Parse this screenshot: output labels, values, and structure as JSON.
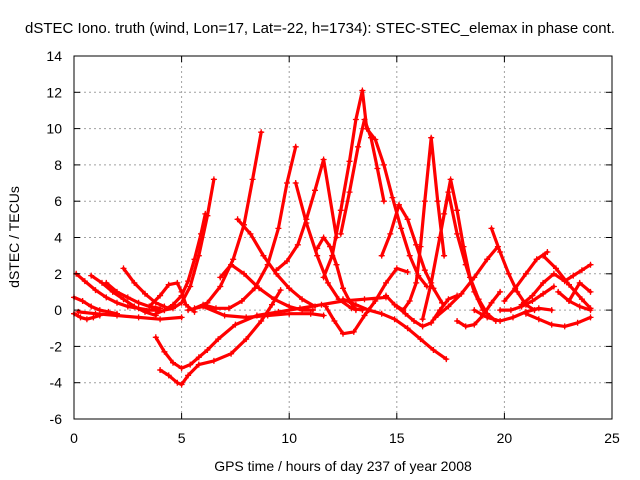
{
  "chart_data": {
    "type": "scatter",
    "title": "dSTEC Iono. truth (wind, Lon=17, Lat=-22, h=1734): STEC-STEC_elemax in phase cont.",
    "xlabel": "GPS time / hours of day 237 of year 2008",
    "ylabel": "dSTEC  / TECUs",
    "xlim": [
      0,
      25
    ],
    "ylim": [
      -6,
      14
    ],
    "xticks": [
      0,
      5,
      10,
      15,
      20,
      25
    ],
    "yticks": [
      -6,
      -4,
      -2,
      0,
      2,
      4,
      6,
      8,
      10,
      12,
      14
    ],
    "xtick_labels": [
      "0",
      "5",
      "10",
      "15",
      "20",
      "25"
    ],
    "ytick_labels": [
      "-6",
      "-4",
      "-2",
      "0",
      "2",
      "4",
      "6",
      "8",
      "10",
      "12",
      "14"
    ],
    "grid": true,
    "marker": "plus",
    "color": "#ff0000",
    "series": [
      {
        "x": [
          0.0,
          0.4,
          0.8,
          1.2,
          1.6,
          2.0
        ],
        "y": [
          0.7,
          0.5,
          0.2,
          0.0,
          -0.1,
          -0.2
        ]
      },
      {
        "x": [
          0.0,
          0.3,
          0.6,
          0.9,
          1.2
        ],
        "y": [
          -0.2,
          -0.4,
          -0.5,
          -0.4,
          -0.3
        ]
      },
      {
        "x": [
          0.1,
          0.5,
          1.0,
          1.5,
          2.0,
          2.5,
          3.0,
          3.5,
          4.0
        ],
        "y": [
          2.0,
          1.6,
          1.1,
          0.7,
          0.4,
          0.2,
          0.1,
          0.0,
          0.0
        ]
      },
      {
        "x": [
          0.8,
          1.3,
          1.8,
          2.3,
          2.8,
          3.3,
          3.8
        ],
        "y": [
          1.9,
          1.5,
          1.0,
          0.6,
          0.2,
          -0.1,
          -0.3
        ]
      },
      {
        "x": [
          1.5,
          2.0,
          2.5,
          3.0,
          3.5,
          4.0
        ],
        "y": [
          1.5,
          1.0,
          0.7,
          0.4,
          0.2,
          0.1
        ]
      },
      {
        "x": [
          0.2,
          1.0,
          2.0,
          3.0,
          4.0,
          5.0
        ],
        "y": [
          -0.1,
          -0.2,
          -0.3,
          -0.4,
          -0.5,
          -0.4
        ]
      },
      {
        "x": [
          2.3,
          2.8,
          3.3,
          3.8,
          4.2
        ],
        "y": [
          2.3,
          1.5,
          0.9,
          0.4,
          0.2
        ]
      },
      {
        "x": [
          3.5,
          4.0,
          4.4,
          4.8,
          5.0,
          5.2,
          5.6
        ],
        "y": [
          0.2,
          0.8,
          1.4,
          1.5,
          1.0,
          0.3,
          -0.1
        ]
      },
      {
        "x": [
          3.8,
          4.2,
          4.6,
          5.0,
          5.3,
          5.6,
          5.9,
          6.1
        ],
        "y": [
          -0.2,
          0.0,
          0.3,
          0.8,
          1.6,
          2.8,
          4.2,
          5.3
        ]
      },
      {
        "x": [
          4.2,
          4.6,
          5.0,
          5.4,
          5.8,
          6.2,
          6.5
        ],
        "y": [
          0.0,
          0.1,
          0.4,
          1.3,
          3.0,
          5.2,
          7.2
        ]
      },
      {
        "x": [
          3.8,
          4.2,
          4.6,
          5.0,
          5.4,
          5.8,
          6.2,
          6.7,
          7.5,
          8.5,
          9.5,
          10.5,
          11.5,
          12.5,
          13.5,
          14.5
        ],
        "y": [
          -1.5,
          -2.3,
          -2.9,
          -3.2,
          -3.0,
          -2.6,
          -2.2,
          -1.6,
          -0.8,
          -0.3,
          -0.1,
          0.1,
          0.3,
          0.5,
          0.6,
          0.7
        ]
      },
      {
        "x": [
          4.0,
          4.4,
          4.8,
          5.0,
          5.3,
          5.8,
          6.5,
          7.3,
          8.0,
          8.7,
          9.2,
          9.6
        ],
        "y": [
          -3.3,
          -3.6,
          -4.0,
          -4.1,
          -3.6,
          -3.0,
          -2.8,
          -2.4,
          -1.6,
          -0.6,
          0.3,
          1.1
        ]
      },
      {
        "x": [
          5.6,
          6.2,
          6.8,
          7.4,
          7.9,
          8.3,
          8.7
        ],
        "y": [
          0.1,
          0.4,
          1.3,
          2.8,
          4.7,
          7.2,
          9.8
        ]
      },
      {
        "x": [
          6.0,
          6.6,
          7.2,
          7.8,
          8.4,
          9.0,
          9.5,
          9.9,
          10.3
        ],
        "y": [
          0.3,
          0.1,
          0.1,
          0.5,
          1.2,
          2.5,
          4.5,
          7.0,
          9.0
        ]
      },
      {
        "x": [
          5.3,
          6.0,
          7.0,
          8.0,
          9.0,
          10.0,
          11.0,
          11.6
        ],
        "y": [
          0.0,
          0.2,
          -0.3,
          -0.4,
          -0.3,
          -0.2,
          -0.2,
          -0.3
        ]
      },
      {
        "x": [
          6.8,
          7.3,
          7.9,
          8.6,
          9.3,
          10.0,
          10.6,
          11.1
        ],
        "y": [
          1.8,
          2.5,
          2.0,
          1.2,
          0.6,
          0.2,
          0.0,
          0.0
        ]
      },
      {
        "x": [
          7.6,
          8.2,
          8.8,
          9.4,
          10.0,
          10.6,
          11.2
        ],
        "y": [
          5.0,
          4.2,
          3.0,
          2.0,
          1.2,
          0.6,
          0.2
        ]
      },
      {
        "x": [
          9.4,
          9.9,
          10.4,
          10.8,
          11.2,
          11.6,
          12.2
        ],
        "y": [
          2.2,
          2.7,
          3.6,
          5.0,
          6.6,
          8.3,
          4.0
        ]
      },
      {
        "x": [
          10.3,
          10.8,
          11.3,
          11.8,
          12.3,
          12.9,
          13.4
        ],
        "y": [
          7.0,
          4.8,
          3.0,
          1.5,
          0.6,
          0.1,
          0.0
        ]
      },
      {
        "x": [
          11.3,
          11.6,
          11.9,
          12.2,
          12.5,
          12.8,
          13.1
        ],
        "y": [
          3.4,
          4.0,
          3.5,
          2.5,
          1.2,
          0.5,
          0.0
        ]
      },
      {
        "x": [
          11.6,
          12.0,
          12.4,
          12.8,
          13.1,
          13.4,
          13.6
        ],
        "y": [
          1.8,
          3.0,
          5.5,
          8.2,
          10.5,
          12.1,
          10.0
        ]
      },
      {
        "x": [
          12.4,
          12.8,
          13.2,
          13.5,
          13.8,
          14.1,
          14.4
        ],
        "y": [
          4.2,
          6.5,
          9.0,
          10.5,
          9.5,
          7.8,
          6.0
        ]
      },
      {
        "x": [
          13.6,
          14.0,
          14.4,
          14.8,
          15.2,
          15.6,
          16.0,
          16.4
        ],
        "y": [
          10.0,
          9.4,
          8.0,
          6.2,
          4.5,
          3.0,
          1.9,
          1.3
        ]
      },
      {
        "x": [
          14.3,
          14.7,
          15.1,
          15.5,
          15.9,
          16.3,
          16.7,
          17.1
        ],
        "y": [
          3.0,
          4.2,
          5.8,
          5.0,
          3.6,
          2.2,
          1.2,
          0.4
        ]
      },
      {
        "x": [
          11.7,
          12.1,
          12.5,
          13.0,
          13.5,
          14.0,
          14.5,
          15.0,
          15.5
        ],
        "y": [
          0.2,
          -0.6,
          -1.3,
          -1.2,
          -0.3,
          0.5,
          1.5,
          2.3,
          2.1
        ]
      },
      {
        "x": [
          12.5,
          13.1,
          13.7,
          14.3,
          14.9,
          15.5,
          16.1,
          16.7,
          17.3
        ],
        "y": [
          0.6,
          0.3,
          0.0,
          -0.2,
          -0.5,
          -1.0,
          -1.6,
          -2.2,
          -2.7
        ]
      },
      {
        "x": [
          14.5,
          14.9,
          15.3,
          15.6,
          15.9,
          16.1,
          16.3,
          16.6,
          16.9,
          17.2
        ],
        "y": [
          0.8,
          0.3,
          0.0,
          0.5,
          1.5,
          3.5,
          6.0,
          9.5,
          6.0,
          3.0
        ]
      },
      {
        "x": [
          15.0,
          15.4,
          15.8,
          16.2,
          16.6,
          17.0,
          17.4,
          17.8
        ],
        "y": [
          0.2,
          -0.2,
          -0.6,
          -0.9,
          -0.7,
          0.0,
          0.6,
          0.8
        ]
      },
      {
        "x": [
          16.2,
          16.6,
          17.0,
          17.4,
          17.8,
          18.2,
          18.6,
          19.0
        ],
        "y": [
          -0.5,
          1.5,
          4.0,
          6.5,
          4.2,
          2.5,
          1.0,
          0.0
        ]
      },
      {
        "x": [
          17.2,
          17.5,
          17.8,
          18.1,
          18.4,
          18.8,
          19.2,
          19.6
        ],
        "y": [
          5.3,
          7.2,
          5.5,
          3.5,
          1.8,
          0.6,
          -0.2,
          -0.6
        ]
      },
      {
        "x": [
          16.8,
          17.4,
          18.0,
          18.6,
          19.2,
          19.7
        ],
        "y": [
          -0.4,
          0.2,
          0.9,
          1.8,
          2.8,
          3.5
        ]
      },
      {
        "x": [
          17.8,
          18.2,
          18.6,
          19.0,
          19.4,
          19.8
        ],
        "y": [
          -0.6,
          -0.9,
          -0.8,
          -0.3,
          0.4,
          1.0
        ]
      },
      {
        "x": [
          19.4,
          19.8,
          20.2,
          20.6,
          21.0,
          21.4
        ],
        "y": [
          4.5,
          3.2,
          2.0,
          1.0,
          0.3,
          0.0
        ]
      },
      {
        "x": [
          19.8,
          20.3,
          20.8,
          21.3,
          21.8,
          22.3
        ],
        "y": [
          0.0,
          0.0,
          0.2,
          0.5,
          0.9,
          1.3
        ]
      },
      {
        "x": [
          18.6,
          19.2,
          19.8,
          20.4,
          21.0,
          21.6,
          22.2
        ],
        "y": [
          0.0,
          -0.4,
          -0.6,
          -0.4,
          -0.1,
          0.1,
          0.0
        ]
      },
      {
        "x": [
          20.0,
          20.5,
          21.0,
          21.5,
          22.0
        ],
        "y": [
          0.5,
          1.2,
          2.0,
          2.8,
          3.2
        ]
      },
      {
        "x": [
          20.8,
          21.3,
          21.8,
          22.3,
          22.8
        ],
        "y": [
          0.3,
          0.8,
          1.5,
          2.0,
          1.6
        ]
      },
      {
        "x": [
          21.8,
          22.4,
          23.0,
          23.6,
          24.0
        ],
        "y": [
          3.0,
          2.3,
          1.4,
          0.6,
          0.1
        ]
      },
      {
        "x": [
          22.8,
          23.2,
          23.6,
          24.0
        ],
        "y": [
          1.6,
          1.9,
          2.2,
          2.5
        ]
      },
      {
        "x": [
          21.0,
          21.6,
          22.2,
          22.8,
          23.4,
          24.0
        ],
        "y": [
          -0.2,
          -0.5,
          -0.8,
          -0.9,
          -0.7,
          -0.4
        ]
      },
      {
        "x": [
          22.5,
          23.0,
          23.5,
          24.0
        ],
        "y": [
          1.0,
          0.5,
          0.2,
          0.0
        ]
      },
      {
        "x": [
          23.0,
          23.5,
          24.0
        ],
        "y": [
          0.5,
          1.5,
          1.0
        ]
      }
    ]
  }
}
